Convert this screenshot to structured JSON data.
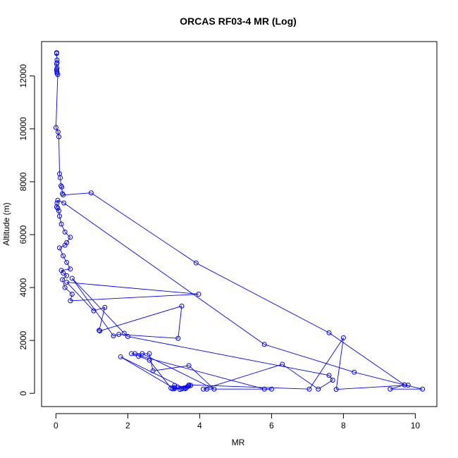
{
  "chart_data": {
    "type": "line",
    "title": "ORCAS RF03-4 MR (Log)",
    "xlabel": "MR",
    "ylabel": "Altitude (m)",
    "xlim": [
      -0.4,
      10.6
    ],
    "ylim": [
      -500,
      13300
    ],
    "x_ticks": [
      0,
      2,
      4,
      6,
      8,
      10
    ],
    "y_ticks": [
      0,
      2000,
      4000,
      6000,
      8000,
      10000,
      12000
    ],
    "grid": false,
    "color": "#0000ff",
    "markers": "open-circle",
    "series": [
      {
        "points": [
          [
            0.02,
            12880
          ],
          [
            0.02,
            12850
          ],
          [
            0.03,
            12600
          ],
          [
            0.03,
            12500
          ],
          [
            0.02,
            12450
          ],
          [
            0.03,
            12300
          ],
          [
            0.02,
            12250
          ],
          [
            0.02,
            12200
          ],
          [
            0.03,
            12150
          ],
          [
            0.03,
            12100
          ],
          [
            0.05,
            12050
          ],
          [
            0.0,
            10050
          ],
          [
            0.06,
            9880
          ],
          [
            0.08,
            9700
          ],
          [
            0.1,
            8300
          ],
          [
            0.12,
            8150
          ],
          [
            0.14,
            7850
          ],
          [
            0.16,
            7800
          ],
          [
            0.18,
            7550
          ],
          [
            0.2,
            7500
          ],
          [
            0.98,
            7580
          ],
          [
            3.9,
            4930
          ],
          [
            7.6,
            2290
          ],
          [
            9.7,
            320
          ],
          [
            9.3,
            160
          ],
          [
            10.2,
            160
          ],
          [
            9.7,
            320
          ],
          [
            8.3,
            800
          ],
          [
            5.8,
            1850
          ],
          [
            0.22,
            7200
          ],
          [
            0.05,
            7300
          ],
          [
            0.03,
            7200
          ],
          [
            0.02,
            7050
          ],
          [
            0.05,
            7000
          ],
          [
            0.08,
            6900
          ],
          [
            0.1,
            6700
          ],
          [
            0.15,
            6400
          ],
          [
            0.25,
            6100
          ],
          [
            0.4,
            5900
          ],
          [
            0.3,
            5700
          ],
          [
            0.25,
            5600
          ],
          [
            0.1,
            5500
          ],
          [
            0.2,
            5200
          ],
          [
            0.3,
            4950
          ],
          [
            0.4,
            4700
          ],
          [
            0.15,
            4650
          ],
          [
            0.2,
            4550
          ],
          [
            0.3,
            4450
          ],
          [
            0.18,
            4300
          ],
          [
            0.25,
            4000
          ],
          [
            0.45,
            3750
          ],
          [
            0.4,
            3500
          ],
          [
            3.97,
            3750
          ],
          [
            0.3,
            4200
          ],
          [
            1.05,
            3120
          ],
          [
            1.36,
            3250
          ],
          [
            1.2,
            2380
          ],
          [
            1.22,
            2360
          ],
          [
            3.5,
            3300
          ],
          [
            3.4,
            2080
          ],
          [
            1.75,
            2230
          ],
          [
            1.6,
            2170
          ],
          [
            0.45,
            4350
          ],
          [
            1.9,
            2270
          ],
          [
            2.0,
            2150
          ],
          [
            7.6,
            680
          ],
          [
            7.7,
            500
          ],
          [
            7.3,
            160
          ],
          [
            6.3,
            1100
          ],
          [
            4.1,
            160
          ],
          [
            4.2,
            160
          ],
          [
            6.0,
            160
          ],
          [
            5.8,
            160
          ],
          [
            2.1,
            1500
          ],
          [
            2.2,
            1500
          ],
          [
            2.6,
            1500
          ],
          [
            2.7,
            850
          ],
          [
            3.7,
            1050
          ],
          [
            4.4,
            160
          ],
          [
            2.4,
            1500
          ],
          [
            2.3,
            1400
          ],
          [
            2.6,
            1250
          ],
          [
            3.2,
            200
          ],
          [
            3.3,
            300
          ],
          [
            3.6,
            200
          ],
          [
            3.7,
            280
          ],
          [
            3.5,
            170
          ],
          [
            3.55,
            200
          ],
          [
            3.25,
            170
          ],
          [
            3.3,
            220
          ],
          [
            3.45,
            150
          ],
          [
            3.65,
            240
          ],
          [
            3.75,
            300
          ],
          [
            3.6,
            180
          ],
          [
            1.8,
            1380
          ],
          [
            3.3,
            180
          ],
          [
            3.7,
            320
          ],
          [
            7.05,
            160
          ],
          [
            8.0,
            2100
          ],
          [
            7.8,
            150
          ],
          [
            9.8,
            310
          ]
        ]
      }
    ]
  }
}
